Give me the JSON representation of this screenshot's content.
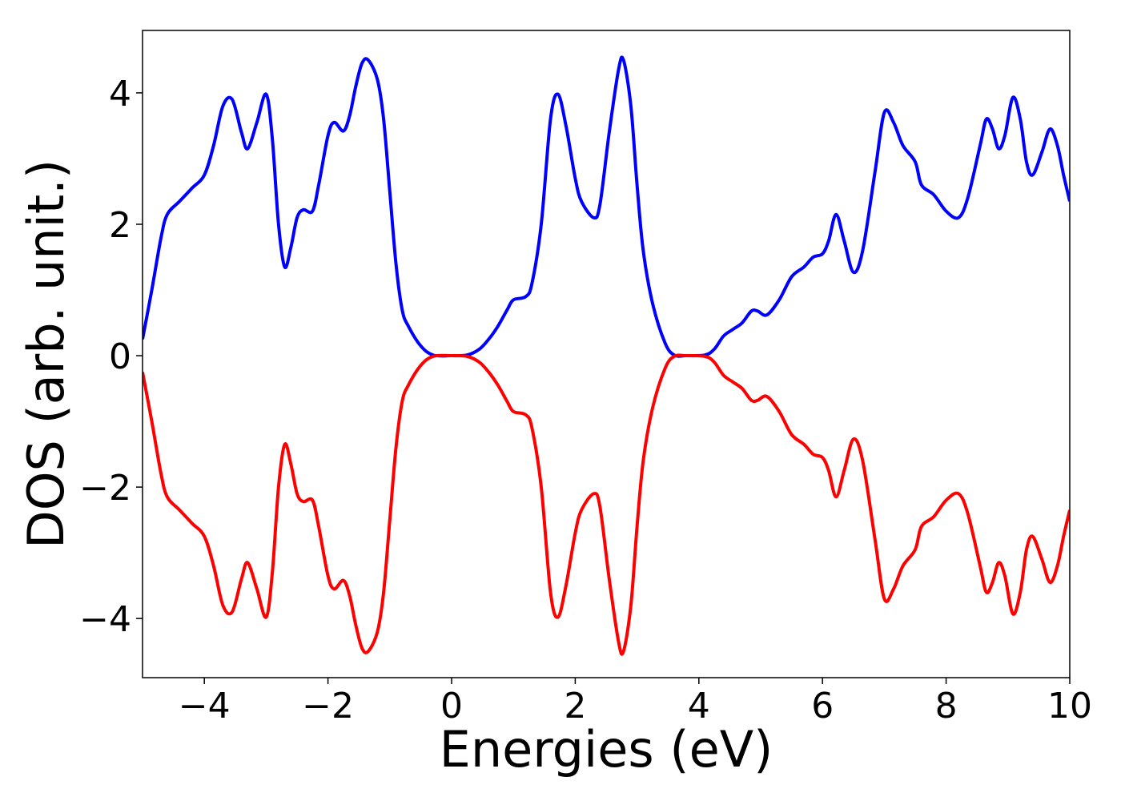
{
  "chart_data": {
    "type": "line",
    "title": "",
    "xlabel": "Energies (eV)",
    "ylabel": "DOS (arb. unit.)",
    "xlim": [
      -5,
      10
    ],
    "ylim": [
      -4.9,
      4.95
    ],
    "xticks": [
      -4,
      -2,
      0,
      2,
      4,
      6,
      8,
      10
    ],
    "xtick_labels": [
      "−4",
      "−2",
      "0",
      "2",
      "4",
      "6",
      "8",
      "10"
    ],
    "yticks": [
      -4,
      -2,
      0,
      2,
      4
    ],
    "ytick_labels": [
      "−4",
      "−2",
      "0",
      "2",
      "4"
    ],
    "grid": false,
    "legend": "none",
    "series": [
      {
        "color": "#0000ff",
        "points": [
          [
            -5.0,
            0.25
          ],
          [
            -4.85,
            1.0
          ],
          [
            -4.7,
            1.8
          ],
          [
            -4.6,
            2.15
          ],
          [
            -4.4,
            2.35
          ],
          [
            -4.2,
            2.55
          ],
          [
            -4.0,
            2.75
          ],
          [
            -3.85,
            3.2
          ],
          [
            -3.7,
            3.8
          ],
          [
            -3.55,
            3.9
          ],
          [
            -3.4,
            3.4
          ],
          [
            -3.3,
            3.15
          ],
          [
            -3.15,
            3.55
          ],
          [
            -3.0,
            3.98
          ],
          [
            -2.9,
            3.3
          ],
          [
            -2.8,
            2.0
          ],
          [
            -2.7,
            1.35
          ],
          [
            -2.6,
            1.65
          ],
          [
            -2.5,
            2.1
          ],
          [
            -2.4,
            2.22
          ],
          [
            -2.25,
            2.2
          ],
          [
            -2.15,
            2.6
          ],
          [
            -2.0,
            3.35
          ],
          [
            -1.9,
            3.55
          ],
          [
            -1.75,
            3.42
          ],
          [
            -1.65,
            3.65
          ],
          [
            -1.55,
            4.1
          ],
          [
            -1.45,
            4.45
          ],
          [
            -1.35,
            4.5
          ],
          [
            -1.2,
            4.2
          ],
          [
            -1.1,
            3.6
          ],
          [
            -1.0,
            2.5
          ],
          [
            -0.9,
            1.4
          ],
          [
            -0.8,
            0.7
          ],
          [
            -0.7,
            0.45
          ],
          [
            -0.5,
            0.15
          ],
          [
            -0.3,
            0.01
          ],
          [
            0.0,
            0.0
          ],
          [
            0.25,
            0.01
          ],
          [
            0.45,
            0.1
          ],
          [
            0.6,
            0.25
          ],
          [
            0.75,
            0.45
          ],
          [
            0.9,
            0.7
          ],
          [
            1.0,
            0.85
          ],
          [
            1.2,
            0.9
          ],
          [
            1.3,
            1.1
          ],
          [
            1.45,
            2.0
          ],
          [
            1.6,
            3.6
          ],
          [
            1.72,
            3.98
          ],
          [
            1.85,
            3.5
          ],
          [
            2.0,
            2.7
          ],
          [
            2.1,
            2.35
          ],
          [
            2.3,
            2.1
          ],
          [
            2.4,
            2.3
          ],
          [
            2.55,
            3.4
          ],
          [
            2.7,
            4.35
          ],
          [
            2.78,
            4.5
          ],
          [
            2.9,
            3.8
          ],
          [
            3.0,
            2.6
          ],
          [
            3.1,
            1.6
          ],
          [
            3.25,
            0.8
          ],
          [
            3.45,
            0.2
          ],
          [
            3.6,
            0.01
          ],
          [
            3.8,
            0.0
          ],
          [
            4.1,
            0.01
          ],
          [
            4.25,
            0.1
          ],
          [
            4.4,
            0.3
          ],
          [
            4.55,
            0.4
          ],
          [
            4.7,
            0.5
          ],
          [
            4.85,
            0.68
          ],
          [
            4.95,
            0.68
          ],
          [
            5.1,
            0.62
          ],
          [
            5.3,
            0.85
          ],
          [
            5.5,
            1.2
          ],
          [
            5.7,
            1.35
          ],
          [
            5.85,
            1.5
          ],
          [
            6.0,
            1.55
          ],
          [
            6.1,
            1.75
          ],
          [
            6.22,
            2.15
          ],
          [
            6.35,
            1.75
          ],
          [
            6.5,
            1.27
          ],
          [
            6.65,
            1.6
          ],
          [
            6.85,
            2.8
          ],
          [
            7.0,
            3.7
          ],
          [
            7.15,
            3.55
          ],
          [
            7.3,
            3.2
          ],
          [
            7.5,
            2.95
          ],
          [
            7.6,
            2.6
          ],
          [
            7.8,
            2.45
          ],
          [
            8.0,
            2.2
          ],
          [
            8.2,
            2.1
          ],
          [
            8.35,
            2.4
          ],
          [
            8.55,
            3.2
          ],
          [
            8.65,
            3.6
          ],
          [
            8.75,
            3.45
          ],
          [
            8.85,
            3.15
          ],
          [
            8.95,
            3.35
          ],
          [
            9.08,
            3.93
          ],
          [
            9.2,
            3.6
          ],
          [
            9.3,
            2.95
          ],
          [
            9.4,
            2.75
          ],
          [
            9.55,
            3.1
          ],
          [
            9.68,
            3.45
          ],
          [
            9.8,
            3.2
          ],
          [
            9.9,
            2.75
          ],
          [
            10.0,
            2.35
          ]
        ]
      },
      {
        "color": "#ff0000",
        "points": [
          [
            -5.0,
            -0.25
          ],
          [
            -4.85,
            -1.0
          ],
          [
            -4.7,
            -1.8
          ],
          [
            -4.6,
            -2.15
          ],
          [
            -4.4,
            -2.35
          ],
          [
            -4.2,
            -2.55
          ],
          [
            -4.0,
            -2.75
          ],
          [
            -3.85,
            -3.2
          ],
          [
            -3.7,
            -3.8
          ],
          [
            -3.55,
            -3.9
          ],
          [
            -3.4,
            -3.4
          ],
          [
            -3.3,
            -3.15
          ],
          [
            -3.15,
            -3.55
          ],
          [
            -3.0,
            -3.98
          ],
          [
            -2.9,
            -3.3
          ],
          [
            -2.8,
            -2.0
          ],
          [
            -2.7,
            -1.35
          ],
          [
            -2.6,
            -1.65
          ],
          [
            -2.5,
            -2.1
          ],
          [
            -2.4,
            -2.22
          ],
          [
            -2.25,
            -2.2
          ],
          [
            -2.15,
            -2.6
          ],
          [
            -2.0,
            -3.35
          ],
          [
            -1.9,
            -3.55
          ],
          [
            -1.75,
            -3.42
          ],
          [
            -1.65,
            -3.65
          ],
          [
            -1.55,
            -4.1
          ],
          [
            -1.45,
            -4.45
          ],
          [
            -1.35,
            -4.5
          ],
          [
            -1.2,
            -4.2
          ],
          [
            -1.1,
            -3.6
          ],
          [
            -1.0,
            -2.5
          ],
          [
            -0.9,
            -1.4
          ],
          [
            -0.8,
            -0.7
          ],
          [
            -0.7,
            -0.45
          ],
          [
            -0.5,
            -0.15
          ],
          [
            -0.3,
            -0.01
          ],
          [
            0.0,
            0.0
          ],
          [
            0.25,
            -0.01
          ],
          [
            0.45,
            -0.1
          ],
          [
            0.6,
            -0.25
          ],
          [
            0.75,
            -0.45
          ],
          [
            0.9,
            -0.7
          ],
          [
            1.0,
            -0.85
          ],
          [
            1.2,
            -0.9
          ],
          [
            1.3,
            -1.1
          ],
          [
            1.45,
            -2.0
          ],
          [
            1.6,
            -3.6
          ],
          [
            1.72,
            -3.98
          ],
          [
            1.85,
            -3.5
          ],
          [
            2.0,
            -2.7
          ],
          [
            2.1,
            -2.35
          ],
          [
            2.3,
            -2.1
          ],
          [
            2.4,
            -2.3
          ],
          [
            2.55,
            -3.4
          ],
          [
            2.7,
            -4.35
          ],
          [
            2.78,
            -4.5
          ],
          [
            2.9,
            -3.8
          ],
          [
            3.0,
            -2.6
          ],
          [
            3.1,
            -1.6
          ],
          [
            3.25,
            -0.8
          ],
          [
            3.45,
            -0.2
          ],
          [
            3.6,
            -0.01
          ],
          [
            3.8,
            0.0
          ],
          [
            4.1,
            -0.01
          ],
          [
            4.25,
            -0.1
          ],
          [
            4.4,
            -0.3
          ],
          [
            4.55,
            -0.4
          ],
          [
            4.7,
            -0.5
          ],
          [
            4.85,
            -0.68
          ],
          [
            4.95,
            -0.68
          ],
          [
            5.1,
            -0.62
          ],
          [
            5.3,
            -0.85
          ],
          [
            5.5,
            -1.2
          ],
          [
            5.7,
            -1.35
          ],
          [
            5.85,
            -1.5
          ],
          [
            6.0,
            -1.55
          ],
          [
            6.1,
            -1.75
          ],
          [
            6.22,
            -2.15
          ],
          [
            6.35,
            -1.75
          ],
          [
            6.5,
            -1.27
          ],
          [
            6.65,
            -1.6
          ],
          [
            6.85,
            -2.8
          ],
          [
            7.0,
            -3.7
          ],
          [
            7.15,
            -3.55
          ],
          [
            7.3,
            -3.2
          ],
          [
            7.5,
            -2.95
          ],
          [
            7.6,
            -2.6
          ],
          [
            7.8,
            -2.45
          ],
          [
            8.0,
            -2.2
          ],
          [
            8.2,
            -2.1
          ],
          [
            8.35,
            -2.4
          ],
          [
            8.55,
            -3.2
          ],
          [
            8.65,
            -3.6
          ],
          [
            8.75,
            -3.45
          ],
          [
            8.85,
            -3.15
          ],
          [
            8.95,
            -3.35
          ],
          [
            9.08,
            -3.93
          ],
          [
            9.2,
            -3.6
          ],
          [
            9.3,
            -2.95
          ],
          [
            9.4,
            -2.75
          ],
          [
            9.55,
            -3.1
          ],
          [
            9.68,
            -3.45
          ],
          [
            9.8,
            -3.2
          ],
          [
            9.9,
            -2.75
          ],
          [
            10.0,
            -2.35
          ]
        ]
      }
    ]
  }
}
